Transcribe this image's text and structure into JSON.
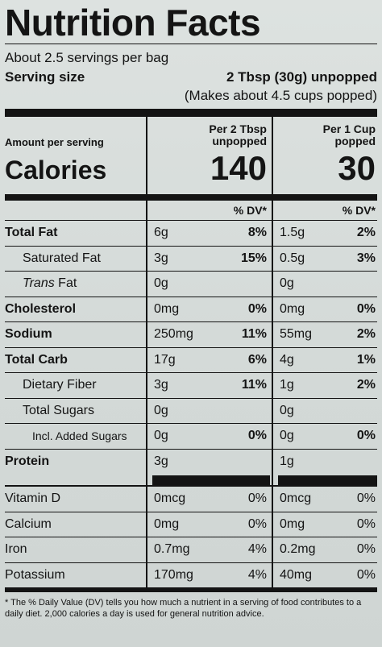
{
  "title": "Nutrition Facts",
  "servings_per_container": "About 2.5 servings per bag",
  "serving_size_label": "Serving size",
  "serving_size_value": "2 Tbsp (30g) unpopped",
  "serving_size_note": "(Makes about 4.5 cups popped)",
  "amount_per_serving": "Amount per serving",
  "calories_label": "Calories",
  "col1": {
    "head_line1": "Per 2 Tbsp",
    "head_line2": "unpopped",
    "calories": "140"
  },
  "col2": {
    "head_line1": "Per 1 Cup",
    "head_line2": "popped",
    "calories": "30"
  },
  "dv_header": "% DV*",
  "nutrients": [
    {
      "name": "Total Fat",
      "amt1": "6g",
      "dv1": "8%",
      "amt2": "1.5g",
      "dv2": "2%"
    },
    {
      "name": "Saturated Fat",
      "amt1": "3g",
      "dv1": "15%",
      "amt2": "0.5g",
      "dv2": "3%"
    },
    {
      "name_italic": "Trans",
      "name": " Fat",
      "amt1": "0g",
      "dv1": "",
      "amt2": "0g",
      "dv2": ""
    },
    {
      "name": "Cholesterol",
      "amt1": "0mg",
      "dv1": "0%",
      "amt2": "0mg",
      "dv2": "0%"
    },
    {
      "name": "Sodium",
      "amt1": "250mg",
      "dv1": "11%",
      "amt2": "55mg",
      "dv2": "2%"
    },
    {
      "name": "Total Carb",
      "amt1": "17g",
      "dv1": "6%",
      "amt2": "4g",
      "dv2": "1%"
    },
    {
      "name": "Dietary Fiber",
      "amt1": "3g",
      "dv1": "11%",
      "amt2": "1g",
      "dv2": "2%"
    },
    {
      "name": "Total Sugars",
      "amt1": "0g",
      "dv1": "",
      "amt2": "0g",
      "dv2": ""
    },
    {
      "name": "Incl. Added Sugars",
      "amt1": "0g",
      "dv1": "0%",
      "amt2": "0g",
      "dv2": "0%"
    },
    {
      "name": "Protein",
      "amt1": "3g",
      "dv1": "",
      "amt2": "1g",
      "dv2": ""
    }
  ],
  "vitamins": [
    {
      "name": "Vitamin D",
      "amt1": "0mcg",
      "dv1": "0%",
      "amt2": "0mcg",
      "dv2": "0%"
    },
    {
      "name": "Calcium",
      "amt1": "0mg",
      "dv1": "0%",
      "amt2": "0mg",
      "dv2": "0%"
    },
    {
      "name": "Iron",
      "amt1": "0.7mg",
      "dv1": "4%",
      "amt2": "0.2mg",
      "dv2": "0%"
    },
    {
      "name": "Potassium",
      "amt1": "170mg",
      "dv1": "4%",
      "amt2": "40mg",
      "dv2": "0%"
    }
  ],
  "footnote": "* The % Daily Value (DV) tells you how much a nutrient in a serving of food contributes to a daily diet. 2,000 calories a day is used for general nutrition advice."
}
